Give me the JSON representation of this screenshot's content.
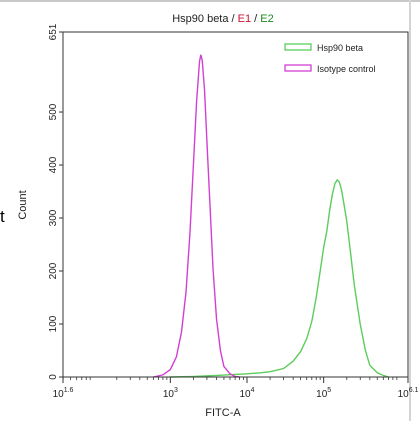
{
  "edge_text": "t",
  "chart_data": {
    "type": "line",
    "title": {
      "prefix": "Hsp90 beta",
      "sep1": " / ",
      "e1": "E1",
      "sep2": " / ",
      "e2": "E2"
    },
    "title_colors": {
      "prefix": "#222222",
      "e1": "#d0102f",
      "e2": "#1a8a1a"
    },
    "xlabel": "FITC-A",
    "ylabel": "Count",
    "x_scale": "log10",
    "xlim": [
      39.8,
      1259000
    ],
    "ylim": [
      0,
      651
    ],
    "x_ticks": [
      {
        "value": 39.8,
        "base": "10",
        "exp": "1.6"
      },
      {
        "value": 1000,
        "base": "10",
        "exp": "3"
      },
      {
        "value": 10000,
        "base": "10",
        "exp": "4"
      },
      {
        "value": 100000,
        "base": "10",
        "exp": "5"
      },
      {
        "value": 1259000,
        "base": "10",
        "exp": "6.1"
      }
    ],
    "y_ticks": [
      "0",
      "100",
      "200",
      "300",
      "400",
      "500",
      "651"
    ],
    "y_tick_values": [
      0,
      100,
      200,
      300,
      400,
      500,
      651
    ],
    "grid": false,
    "legend_position": "top-right",
    "series": [
      {
        "name": "Hsp90 beta",
        "color": "#5ccd5c",
        "points": [
          [
            1000,
            0
          ],
          [
            2000,
            1
          ],
          [
            4000,
            3
          ],
          [
            7000,
            5
          ],
          [
            10000,
            6
          ],
          [
            15000,
            8
          ],
          [
            20000,
            10
          ],
          [
            30000,
            16
          ],
          [
            40000,
            30
          ],
          [
            50000,
            48
          ],
          [
            60000,
            72
          ],
          [
            70000,
            105
          ],
          [
            80000,
            150
          ],
          [
            90000,
            200
          ],
          [
            100000,
            245
          ],
          [
            110000,
            275
          ],
          [
            120000,
            315
          ],
          [
            130000,
            345
          ],
          [
            140000,
            365
          ],
          [
            150000,
            372
          ],
          [
            160000,
            368
          ],
          [
            170000,
            355
          ],
          [
            180000,
            335
          ],
          [
            200000,
            295
          ],
          [
            220000,
            245
          ],
          [
            250000,
            175
          ],
          [
            300000,
            100
          ],
          [
            350000,
            50
          ],
          [
            400000,
            22
          ],
          [
            500000,
            8
          ],
          [
            600000,
            3
          ],
          [
            700000,
            0
          ]
        ]
      },
      {
        "name": "Isotype control",
        "color": "#d23fd2",
        "points": [
          [
            600,
            0
          ],
          [
            800,
            4
          ],
          [
            1000,
            14
          ],
          [
            1200,
            38
          ],
          [
            1400,
            85
          ],
          [
            1600,
            160
          ],
          [
            1800,
            270
          ],
          [
            2000,
            400
          ],
          [
            2200,
            520
          ],
          [
            2400,
            595
          ],
          [
            2500,
            608
          ],
          [
            2600,
            598
          ],
          [
            2800,
            540
          ],
          [
            3000,
            445
          ],
          [
            3300,
            320
          ],
          [
            3600,
            205
          ],
          [
            4000,
            110
          ],
          [
            4500,
            50
          ],
          [
            5000,
            20
          ],
          [
            6000,
            6
          ],
          [
            7000,
            1
          ],
          [
            8000,
            0
          ]
        ]
      }
    ]
  }
}
